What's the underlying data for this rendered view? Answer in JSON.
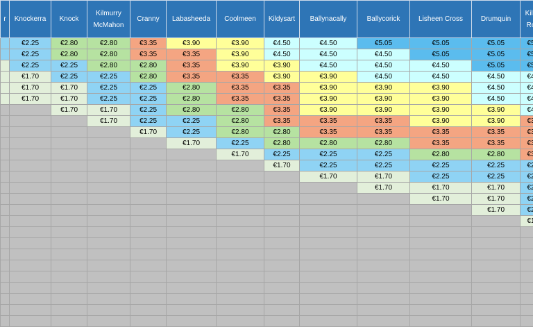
{
  "palette": {
    "header": "#2e75b6",
    "empty": "#c0c0c0",
    "fare_colors": {
      "€1.70": "#e2efda",
      "€2.25": "#8fd3f4",
      "€2.80": "#b6e2a1",
      "€3.35": "#f4a582",
      "€3.90": "#ffff99",
      "€4.50": "#ccffff",
      "€5.05": "#5bbcee",
      "€5.95": "#a6a6a6"
    }
  },
  "header_row": [
    "r",
    "Knockerra",
    "Knock",
    "Kilmurry McMahon",
    "Cranny",
    "Labasheeda",
    "Coolmeen",
    "Kildysart",
    "Ballynacally",
    "Ballycorick",
    "Lisheen Cross",
    "Drumquin",
    "Kild Ro"
  ],
  "fare_rows": [
    [
      "",
      "€2.25",
      "€2.80",
      "€2.80",
      "€3.35",
      "€3.90",
      "€3.90",
      "€4.50",
      "€4.50",
      "€5.05",
      "€5.05",
      "€5.05",
      "€5"
    ],
    [
      "",
      "€2.25",
      "€2.80",
      "€2.80",
      "€3.35",
      "€3.35",
      "€3.90",
      "€4.50",
      "€4.50",
      "€4.50",
      "€5.05",
      "€5.05",
      "€5"
    ],
    [
      "",
      "€2.25",
      "€2.25",
      "€2.80",
      "€2.80",
      "€3.35",
      "€3.90",
      "€3.90",
      "€4.50",
      "€4.50",
      "€4.50",
      "€5.05",
      "€5"
    ],
    [
      "",
      "€1.70",
      "€2.25",
      "€2.25",
      "€2.80",
      "€3.35",
      "€3.35",
      "€3.90",
      "€3.90",
      "€4.50",
      "€4.50",
      "€4.50",
      "€4"
    ],
    [
      "",
      "€1.70",
      "€1.70",
      "€2.25",
      "€2.25",
      "€2.80",
      "€3.35",
      "€3.35",
      "€3.90",
      "€3.90",
      "€3.90",
      "€4.50",
      "€4"
    ],
    [
      "",
      "€1.70",
      "€1.70",
      "€2.25",
      "€2.25",
      "€2.80",
      "€3.35",
      "€3.35",
      "€3.90",
      "€3.90",
      "€3.90",
      "€4.50",
      "€4"
    ],
    [
      "",
      "",
      "€1.70",
      "€1.70",
      "€2.25",
      "€2.80",
      "€2.80",
      "€3.35",
      "€3.90",
      "€3.90",
      "€3.90",
      "€3.90",
      "€4"
    ],
    [
      "",
      "",
      "",
      "€1.70",
      "€2.25",
      "€2.25",
      "€2.80",
      "€3.35",
      "€3.35",
      "€3.35",
      "€3.90",
      "€3.90",
      "€3"
    ],
    [
      "",
      "",
      "",
      "",
      "€1.70",
      "€2.25",
      "€2.80",
      "€2.80",
      "€3.35",
      "€3.35",
      "€3.35",
      "€3.35",
      "€3"
    ],
    [
      "",
      "",
      "",
      "",
      "",
      "€1.70",
      "€2.25",
      "€2.80",
      "€2.80",
      "€2.80",
      "€3.35",
      "€3.35",
      "€3"
    ],
    [
      "",
      "",
      "",
      "",
      "",
      "",
      "€1.70",
      "€2.25",
      "€2.25",
      "€2.25",
      "€2.80",
      "€2.80",
      "€3"
    ],
    [
      "",
      "",
      "",
      "",
      "",
      "",
      "",
      "€1.70",
      "€2.25",
      "€2.25",
      "€2.25",
      "€2.25",
      "€2"
    ],
    [
      "",
      "",
      "",
      "",
      "",
      "",
      "",
      "",
      "€1.70",
      "€1.70",
      "€2.25",
      "€2.25",
      "€2"
    ],
    [
      "",
      "",
      "",
      "",
      "",
      "",
      "",
      "",
      "",
      "€1.70",
      "€1.70",
      "€1.70",
      "€2"
    ],
    [
      "",
      "",
      "",
      "",
      "",
      "",
      "",
      "",
      "",
      "",
      "€1.70",
      "€1.70",
      "€2"
    ],
    [
      "",
      "",
      "",
      "",
      "",
      "",
      "",
      "",
      "",
      "",
      "",
      "€1.70",
      "€2"
    ],
    [
      "",
      "",
      "",
      "",
      "",
      "",
      "",
      "",
      "",
      "",
      "",
      "",
      "€1"
    ],
    [
      "",
      "",
      "",
      "",
      "",
      "",
      "",
      "",
      "",
      "",
      "",
      "",
      ""
    ],
    [
      "",
      "",
      "",
      "",
      "",
      "",
      "",
      "",
      "",
      "",
      "",
      "",
      ""
    ],
    [
      "",
      "",
      "",
      "",
      "",
      "",
      "",
      "",
      "",
      "",
      "",
      "",
      ""
    ],
    [
      "",
      "",
      "",
      "",
      "",
      "",
      "",
      "",
      "",
      "",
      "",
      "",
      ""
    ],
    [
      "",
      "",
      "",
      "",
      "",
      "",
      "",
      "",
      "",
      "",
      "",
      "",
      ""
    ],
    [
      "",
      "",
      "",
      "",
      "",
      "",
      "",
      "",
      "",
      "",
      "",
      "",
      ""
    ],
    [
      "",
      "",
      "",
      "",
      "",
      "",
      "",
      "",
      "",
      "",
      "",
      "",
      ""
    ],
    [
      "",
      "",
      "",
      "",
      "",
      "",
      "",
      "",
      "",
      "",
      "",
      "",
      ""
    ],
    [
      "",
      "",
      "",
      "",
      "",
      "",
      "",
      "",
      "",
      "",
      "",
      "",
      ""
    ]
  ]
}
